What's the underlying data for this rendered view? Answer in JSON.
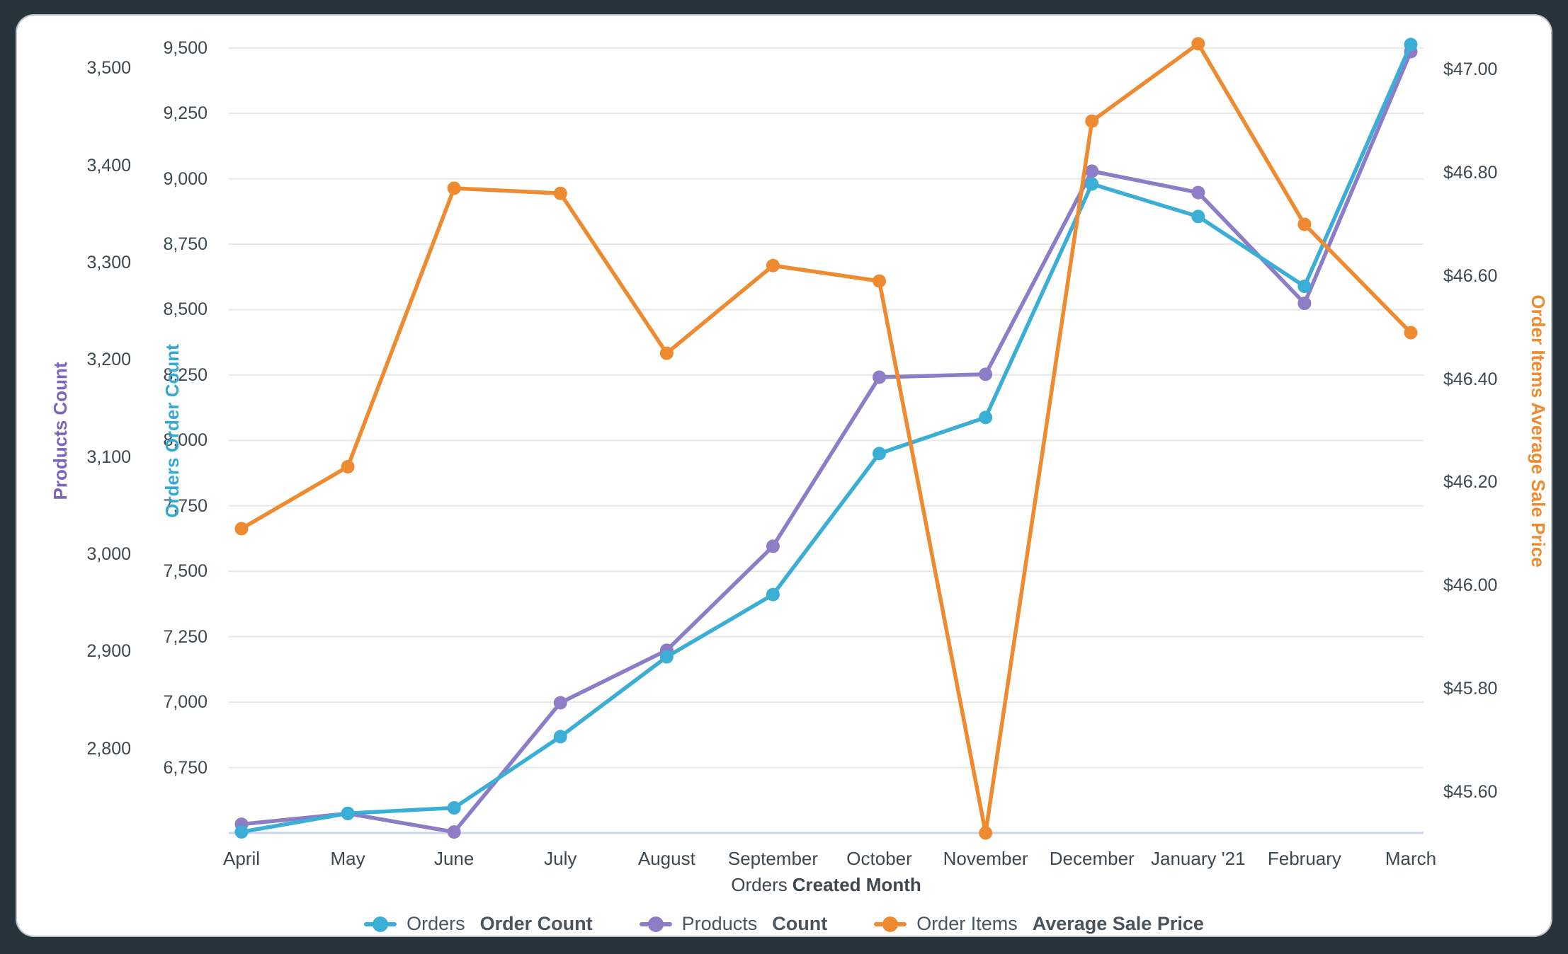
{
  "frame": {
    "background": "#28343c",
    "card_background": "#ffffff"
  },
  "chart_data": {
    "type": "line",
    "categories": [
      "April",
      "May",
      "June",
      "July",
      "August",
      "September",
      "October",
      "November",
      "December",
      "January '21",
      "February",
      "March"
    ],
    "xlabel": {
      "regular": "Orders",
      "bold": "Created Month"
    },
    "grid": true,
    "legend_position": "bottom",
    "grid_color": "#e7e7e7",
    "baseline_color": "#ccd5ed",
    "text_color": "#3e484f",
    "axes": {
      "orders": {
        "title": "Orders Order Count",
        "color": "#35a9d2",
        "min": 6500,
        "max": 9575,
        "ticks": [
          {
            "v": 9500,
            "label": "9,500"
          },
          {
            "v": 9250,
            "label": "9,250"
          },
          {
            "v": 9000,
            "label": "9,000"
          },
          {
            "v": 8750,
            "label": "8,750"
          },
          {
            "v": 8500,
            "label": "8,500"
          },
          {
            "v": 8250,
            "label": "8,250"
          },
          {
            "v": 8000,
            "label": "8,000"
          },
          {
            "v": 7750,
            "label": "7,750"
          },
          {
            "v": 7500,
            "label": "7,500"
          },
          {
            "v": 7250,
            "label": "7,250"
          },
          {
            "v": 7000,
            "label": "7,000"
          },
          {
            "v": 6750,
            "label": "6,750"
          }
        ]
      },
      "products": {
        "title": "Products Count",
        "color": "#7e63c1",
        "min": 2713,
        "max": 3541,
        "ticks": [
          {
            "v": 3500,
            "label": "3,500"
          },
          {
            "v": 3400,
            "label": "3,400"
          },
          {
            "v": 3300,
            "label": "3,300"
          },
          {
            "v": 3200,
            "label": "3,200"
          },
          {
            "v": 3100,
            "label": "3,100"
          },
          {
            "v": 3000,
            "label": "3,000"
          },
          {
            "v": 2900,
            "label": "2,900"
          },
          {
            "v": 2800,
            "label": "2,800"
          }
        ]
      },
      "price": {
        "title": "Order Items Average Sale Price",
        "color": "#ee8b30",
        "min": 45.52,
        "max": 47.08,
        "ticks": [
          {
            "v": 47.0,
            "label": "$47.00"
          },
          {
            "v": 46.8,
            "label": "$46.80"
          },
          {
            "v": 46.6,
            "label": "$46.60"
          },
          {
            "v": 46.4,
            "label": "$46.40"
          },
          {
            "v": 46.2,
            "label": "$46.20"
          },
          {
            "v": 46.0,
            "label": "$46.00"
          },
          {
            "v": 45.8,
            "label": "$45.80"
          },
          {
            "v": 45.6,
            "label": "$45.60"
          }
        ]
      }
    },
    "series": [
      {
        "name": "Orders Order Count",
        "legend_regular": "Orders",
        "legend_bold": "Order Count",
        "color": "#3baed6",
        "axis": "orders",
        "values": [
          6504,
          6575,
          6596,
          6868,
          7173,
          7411,
          7950,
          8088,
          8980,
          8856,
          8589,
          9513
        ]
      },
      {
        "name": "Products Count",
        "legend_regular": "Products",
        "legend_bold": "Count",
        "color": "#8d7cc6",
        "axis": "products",
        "values": [
          2722,
          2733,
          2714,
          2847,
          2901,
          3008,
          3182,
          3185,
          3394,
          3372,
          3258,
          3517
        ]
      },
      {
        "name": "Order Items Average Sale Price",
        "legend_regular": "Order Items",
        "legend_bold": "Average Sale Price",
        "color": "#ee8b30",
        "axis": "price",
        "values": [
          46.11,
          46.23,
          46.77,
          46.76,
          46.45,
          46.62,
          46.59,
          45.52,
          46.9,
          47.05,
          46.7,
          46.49
        ]
      }
    ]
  }
}
